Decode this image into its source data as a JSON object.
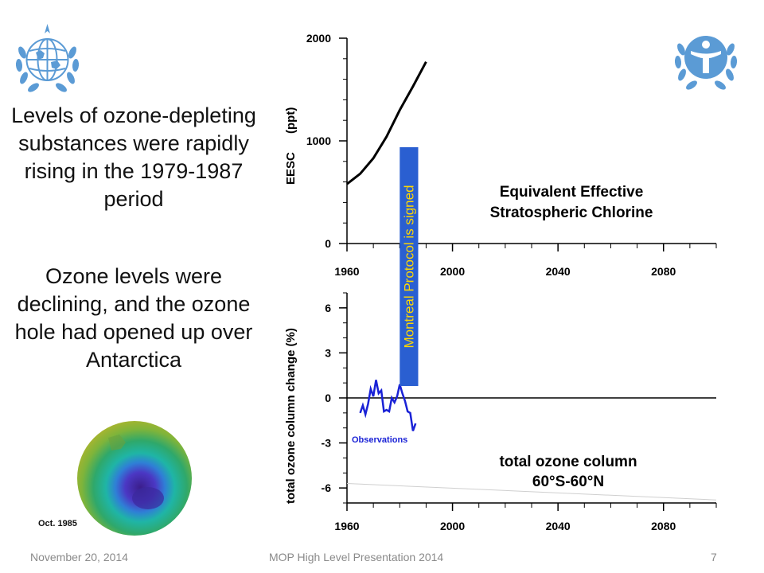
{
  "slide": {
    "headline": "Levels of ozone-depleting substances were rapidly rising in the 1979-1987 period",
    "ozone_text": "Ozone levels were declining, and the ozone hole had opened up over Antarctica",
    "image_caption": "Oct. 1985",
    "footer_date": "November 20, 2014",
    "footer_title": "MOP High Level Presentation 2014",
    "page_number": "7",
    "annotation": "Montreal Protocol is signed",
    "annotation_x": [
      1980,
      1987
    ]
  },
  "colors": {
    "annotation_bg": "#2a5fd1",
    "annotation_text": "#ffd700",
    "observations": "#1a22d6",
    "eesc_line": "#000000",
    "wmo_emblem": "#5b9bd5",
    "unep_emblem": "#5b9bd5"
  },
  "icons": {
    "top_left": "wmo-emblem-icon",
    "top_right": "unep-emblem-icon"
  },
  "chart_data": [
    {
      "type": "line",
      "title": "Equivalent Effective Stratospheric Chlorine",
      "title_lines": [
        "Equivalent Effective",
        "Stratospheric Chlorine"
      ],
      "ylabel": "EESC",
      "ylabel_unit": "(ppt)",
      "xlim": [
        1960,
        2100
      ],
      "ylim": [
        0,
        2000
      ],
      "xticks": [
        1960,
        2000,
        2040,
        2080
      ],
      "yticks": [
        0,
        1000,
        2000
      ],
      "series": [
        {
          "x": [
            1960,
            1965,
            1970,
            1975,
            1980,
            1985,
            1990
          ],
          "y": [
            580,
            680,
            830,
            1040,
            1300,
            1530,
            1770
          ]
        }
      ]
    },
    {
      "type": "line",
      "title": "total ozone column",
      "subtitle": "60°S-60°N",
      "ylabel": "total ozone column change (%)",
      "xlim": [
        1960,
        2100
      ],
      "ylim": [
        -7,
        7
      ],
      "xticks": [
        1960,
        2000,
        2040,
        2080
      ],
      "yticks": [
        6,
        3,
        0,
        -3,
        -6
      ],
      "zero_line": true,
      "series": [
        {
          "name": "Observations",
          "x": [
            1965,
            1966,
            1967,
            1968,
            1969,
            1970,
            1971,
            1972,
            1973,
            1974,
            1975,
            1976,
            1977,
            1978,
            1979,
            1980,
            1981,
            1982,
            1983,
            1984,
            1985,
            1986
          ],
          "y": [
            -1.0,
            -0.5,
            -1.1,
            -0.4,
            0.6,
            0.1,
            1.2,
            0.3,
            0.5,
            -0.9,
            -0.8,
            -0.9,
            0.0,
            -0.3,
            0.1,
            0.9,
            0.3,
            -0.2,
            -0.9,
            -1.0,
            -2.2,
            -1.7
          ]
        }
      ]
    }
  ]
}
